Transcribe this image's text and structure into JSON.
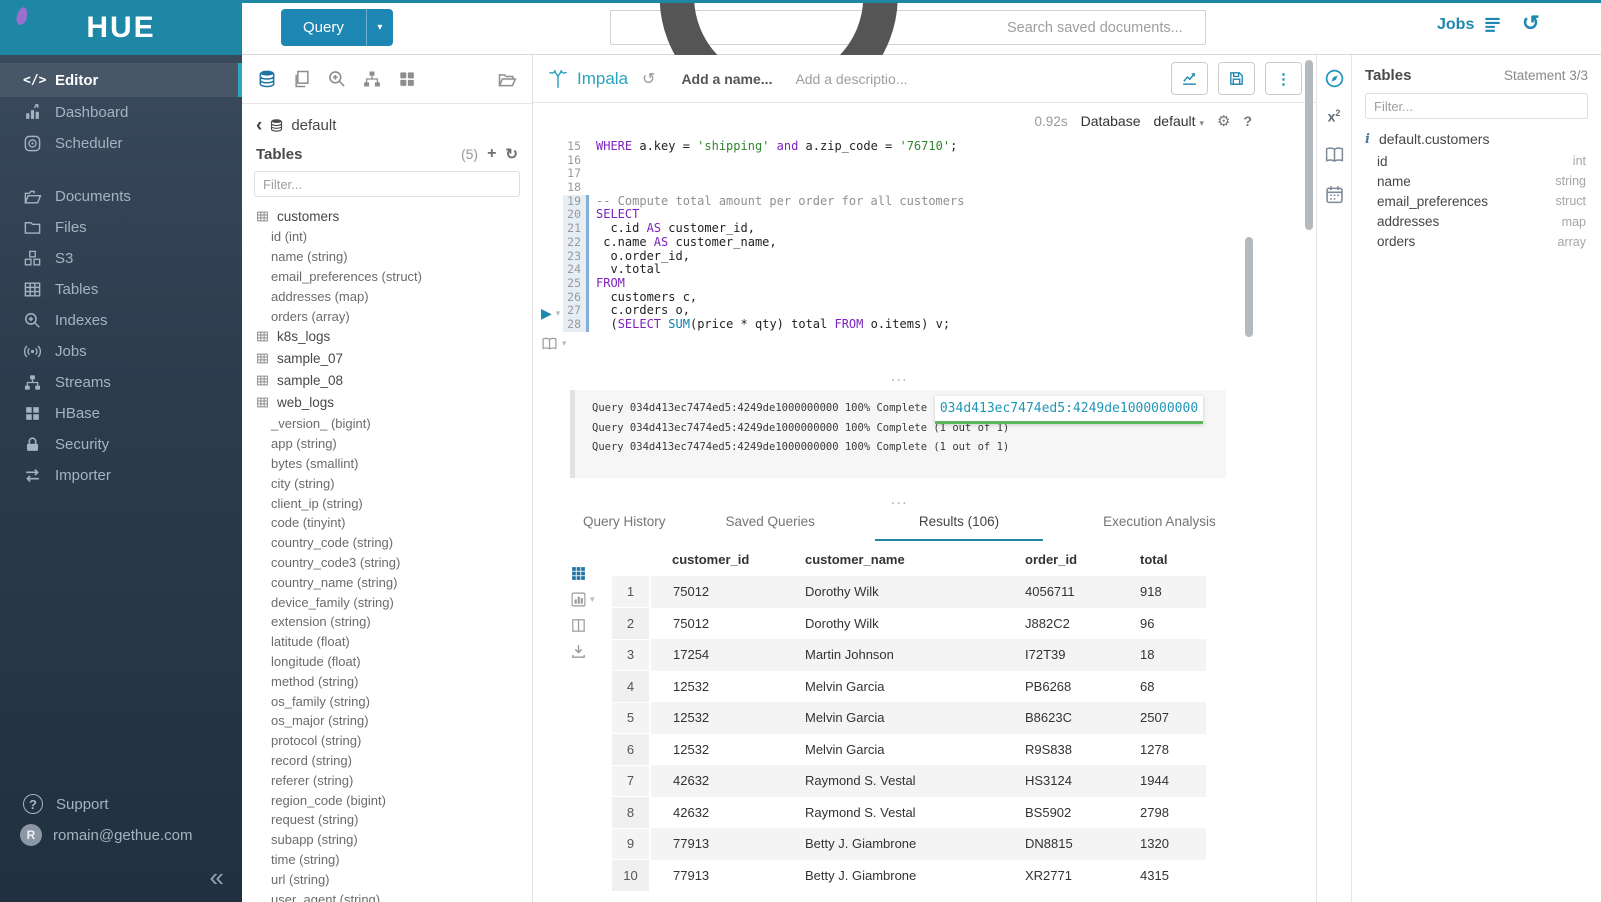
{
  "topbar": {
    "logo_text": "HUE",
    "query_button": "Query",
    "search_placeholder": "Search saved documents...",
    "jobs_label": "Jobs"
  },
  "sidebar": {
    "items": [
      {
        "label": "Editor"
      },
      {
        "label": "Dashboard"
      },
      {
        "label": "Scheduler"
      },
      {
        "label": "Documents"
      },
      {
        "label": "Files"
      },
      {
        "label": "S3"
      },
      {
        "label": "Tables"
      },
      {
        "label": "Indexes"
      },
      {
        "label": "Jobs"
      },
      {
        "label": "Streams"
      },
      {
        "label": "HBase"
      },
      {
        "label": "Security"
      },
      {
        "label": "Importer"
      }
    ],
    "support_label": "Support",
    "user_email": "romain@gethue.com",
    "avatar_initial": "R"
  },
  "left_assist": {
    "database": "default",
    "tables_header": "Tables",
    "tables_count": "(5)",
    "filter_placeholder": "Filter...",
    "tree": [
      {
        "name": "customers",
        "columns": [
          "id (int)",
          "name (string)",
          "email_preferences (struct)",
          "addresses (map)",
          "orders (array)"
        ]
      },
      {
        "name": "k8s_logs",
        "columns": []
      },
      {
        "name": "sample_07",
        "columns": []
      },
      {
        "name": "sample_08",
        "columns": []
      },
      {
        "name": "web_logs",
        "columns": [
          "_version_ (bigint)",
          "app (string)",
          "bytes (smallint)",
          "city (string)",
          "client_ip (string)",
          "code (tinyint)",
          "country_code (string)",
          "country_code3 (string)",
          "country_name (string)",
          "device_family (string)",
          "extension (string)",
          "latitude (float)",
          "longitude (float)",
          "method (string)",
          "os_family (string)",
          "os_major (string)",
          "protocol (string)",
          "record (string)",
          "referer (string)",
          "region_code (bigint)",
          "request (string)",
          "subapp (string)",
          "time (string)",
          "url (string)",
          "user_agent (string)"
        ]
      }
    ]
  },
  "editor": {
    "engine": "Impala",
    "name_placeholder": "Add a name...",
    "description_placeholder": "Add a descriptio...",
    "exec_time": "0.92s",
    "database_label": "Database",
    "database_value": "default",
    "code_lines": [
      {
        "n": 15,
        "active": false,
        "seg": [
          [
            "kw",
            "WHERE"
          ],
          [
            "pl",
            " a.key = "
          ],
          [
            "str",
            "'shipping'"
          ],
          [
            "pl",
            " "
          ],
          [
            "kw",
            "and"
          ],
          [
            "pl",
            " a.zip_code = "
          ],
          [
            "str",
            "'76710'"
          ],
          [
            "pl",
            ";"
          ]
        ]
      },
      {
        "n": 16,
        "active": false,
        "seg": []
      },
      {
        "n": 17,
        "active": false,
        "seg": []
      },
      {
        "n": 18,
        "active": false,
        "seg": []
      },
      {
        "n": 19,
        "active": true,
        "seg": [
          [
            "cmt",
            "-- Compute total amount per order for all customers"
          ]
        ]
      },
      {
        "n": 20,
        "active": true,
        "seg": [
          [
            "kw",
            "SELECT"
          ]
        ]
      },
      {
        "n": 21,
        "active": true,
        "seg": [
          [
            "pl",
            "  c.id "
          ],
          [
            "kw",
            "AS"
          ],
          [
            "pl",
            " customer_id,"
          ]
        ]
      },
      {
        "n": 22,
        "active": true,
        "seg": [
          [
            "pl",
            " c.name "
          ],
          [
            "kw",
            "AS"
          ],
          [
            "pl",
            " customer_name,"
          ]
        ]
      },
      {
        "n": 23,
        "active": true,
        "seg": [
          [
            "pl",
            "  o.order_id,"
          ]
        ]
      },
      {
        "n": 24,
        "active": true,
        "seg": [
          [
            "pl",
            "  v.total"
          ]
        ]
      },
      {
        "n": 25,
        "active": true,
        "seg": [
          [
            "kw",
            "FROM"
          ]
        ]
      },
      {
        "n": 26,
        "active": true,
        "seg": [
          [
            "pl",
            "  customers c,"
          ]
        ]
      },
      {
        "n": 27,
        "active": true,
        "seg": [
          [
            "pl",
            "  c.orders o,"
          ]
        ]
      },
      {
        "n": 28,
        "active": true,
        "seg": [
          [
            "pl",
            "  ("
          ],
          [
            "kw",
            "SELECT"
          ],
          [
            "pl",
            " "
          ],
          [
            "fn",
            "SUM"
          ],
          [
            "pl",
            "(price * qty) total "
          ],
          [
            "kw",
            "FROM"
          ],
          [
            "pl",
            " o.items) v;"
          ]
        ]
      }
    ]
  },
  "log": {
    "lines": [
      "Query 034d413ec7474ed5:4249de1000000000 100% Complete (1 out of 1)",
      "Query 034d413ec7474ed5:4249de1000000000 100% Complete (1 out of 1)",
      "Query 034d413ec7474ed5:4249de1000000000 100% Complete (1 out of 1)"
    ],
    "tooltip": "034d413ec7474ed5:4249de1000000000"
  },
  "tabs": [
    {
      "label": "Query History"
    },
    {
      "label": "Saved Queries"
    },
    {
      "label": "Results (106)"
    },
    {
      "label": "Execution Analysis"
    }
  ],
  "results": {
    "columns": [
      "customer_id",
      "customer_name",
      "order_id",
      "total"
    ],
    "rows": [
      [
        "1",
        "75012",
        "Dorothy Wilk",
        "4056711",
        "918"
      ],
      [
        "2",
        "75012",
        "Dorothy Wilk",
        "J882C2",
        "96"
      ],
      [
        "3",
        "17254",
        "Martin Johnson",
        "I72T39",
        "18"
      ],
      [
        "4",
        "12532",
        "Melvin Garcia",
        "PB6268",
        "68"
      ],
      [
        "5",
        "12532",
        "Melvin Garcia",
        "B8623C",
        "2507"
      ],
      [
        "6",
        "12532",
        "Melvin Garcia",
        "R9S838",
        "1278"
      ],
      [
        "7",
        "42632",
        "Raymond S. Vestal",
        "HS3124",
        "1944"
      ],
      [
        "8",
        "42632",
        "Raymond S. Vestal",
        "BS5902",
        "2798"
      ],
      [
        "9",
        "77913",
        "Betty J. Giambrone",
        "DN8815",
        "1320"
      ],
      [
        "10",
        "77913",
        "Betty J. Giambrone",
        "XR2771",
        "4315"
      ]
    ]
  },
  "right_assist": {
    "title": "Tables",
    "statement": "Statement 3/3",
    "filter_placeholder": "Filter...",
    "table_name": "default.customers",
    "columns": [
      {
        "name": "id",
        "type": "int"
      },
      {
        "name": "name",
        "type": "string"
      },
      {
        "name": "email_preferences",
        "type": "struct"
      },
      {
        "name": "addresses",
        "type": "map"
      },
      {
        "name": "orders",
        "type": "array"
      }
    ]
  },
  "colors": {
    "brand_teal": "#1d87a5",
    "accent_blue": "#1d87b0",
    "sql_keyword": "#7d22bd",
    "sql_string": "#2d872d",
    "sql_comment": "#909090",
    "sql_function": "#0e7fad",
    "log_underline": "#5cb85c"
  }
}
